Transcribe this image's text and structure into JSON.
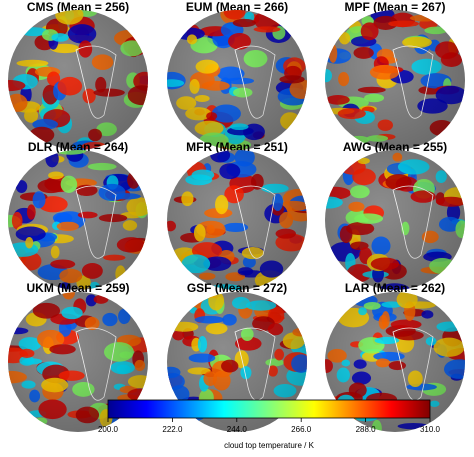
{
  "panels": [
    {
      "title": "CMS (Mean = 256)"
    },
    {
      "title": "EUM (Mean = 266)"
    },
    {
      "title": "MPF (Mean = 267)"
    },
    {
      "title": "DLR (Mean = 264)"
    },
    {
      "title": "MFR (Mean = 251)"
    },
    {
      "title": "AWG (Mean = 255)"
    },
    {
      "title": "UKM (Mean = 259)"
    },
    {
      "title": "GSF (Mean = 272)"
    },
    {
      "title": "LAR (Mean = 262)"
    }
  ],
  "colorbar": {
    "label": "cloud top temperature / K",
    "ticks": [
      {
        "value": 200,
        "label": "200.0"
      },
      {
        "value": 222,
        "label": "222.0"
      },
      {
        "value": 244,
        "label": "244.0"
      },
      {
        "value": 266,
        "label": "266.0"
      },
      {
        "value": 288,
        "label": "288.0"
      },
      {
        "value": 310,
        "label": "310.0"
      }
    ]
  }
}
